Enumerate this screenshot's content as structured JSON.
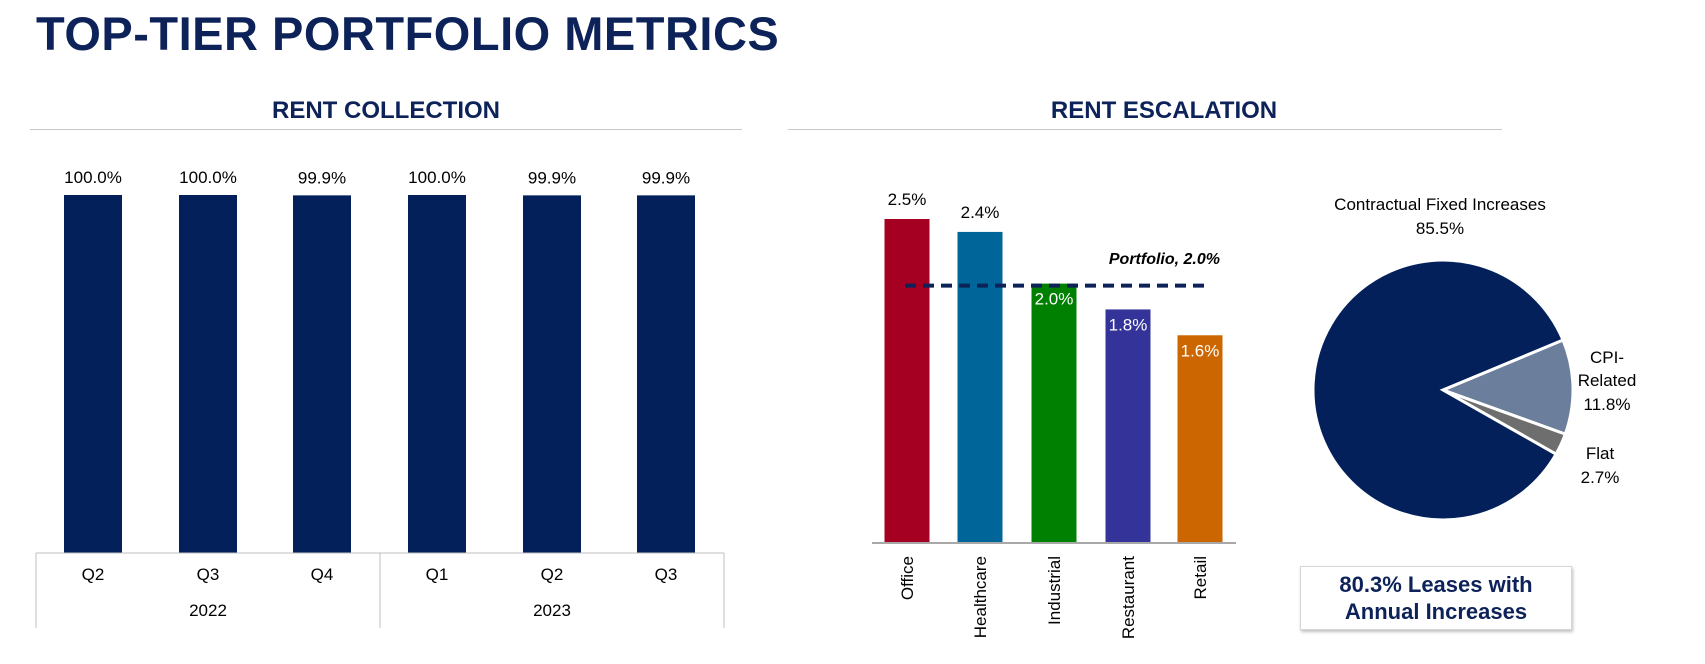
{
  "title": "TOP-TIER PORTFOLIO METRICS",
  "sections": {
    "rent_collection": {
      "title": "RENT COLLECTION"
    },
    "rent_escalation": {
      "title": "RENT ESCALATION"
    }
  },
  "colors": {
    "navy": "#03205a",
    "title": "#0c2258",
    "office": "#a50021",
    "healthcare": "#006699",
    "industrial": "#008000",
    "restaurant": "#333399",
    "retail": "#cc6600",
    "cpi": "#6b7e9c",
    "flat": "#6e6e6e"
  },
  "chart_data": [
    {
      "type": "bar",
      "title": "RENT COLLECTION",
      "categories": [
        "Q2",
        "Q3",
        "Q4",
        "Q1",
        "Q2",
        "Q3"
      ],
      "groups": [
        {
          "label": "2022",
          "categories": [
            "Q2",
            "Q3",
            "Q4"
          ]
        },
        {
          "label": "2023",
          "categories": [
            "Q1",
            "Q2",
            "Q3"
          ]
        }
      ],
      "values": [
        100.0,
        100.0,
        99.9,
        100.0,
        99.9,
        99.9
      ],
      "data_labels": [
        "100.0%",
        "100.0%",
        "99.9%",
        "100.0%",
        "99.9%",
        "99.9%"
      ],
      "ylim": [
        0,
        100
      ]
    },
    {
      "type": "bar",
      "title": "RENT ESCALATION",
      "categories": [
        "Office",
        "Healthcare",
        "Industrial",
        "Restaurant",
        "Retail"
      ],
      "values": [
        2.5,
        2.4,
        2.0,
        1.8,
        1.6
      ],
      "data_labels": [
        "2.5%",
        "2.4%",
        "2.0%",
        "1.8%",
        "1.6%"
      ],
      "reference_line": {
        "value": 2.0,
        "label": "Portfolio, 2.0%"
      },
      "ylim": [
        0,
        2.5
      ]
    },
    {
      "type": "pie",
      "slices": [
        {
          "label": "Contractual Fixed Increases",
          "label_lines": [
            "Contractual Fixed Increases"
          ],
          "value": 85.5,
          "value_label": "85.5%"
        },
        {
          "label": "CPI-Related",
          "label_lines": [
            "CPI-",
            "Related"
          ],
          "value": 11.8,
          "value_label": "11.8%"
        },
        {
          "label": "Flat",
          "label_lines": [
            "Flat"
          ],
          "value": 2.7,
          "value_label": "2.7%"
        }
      ]
    }
  ],
  "callout": {
    "line1": "80.3% Leases with",
    "line2": "Annual Increases"
  }
}
